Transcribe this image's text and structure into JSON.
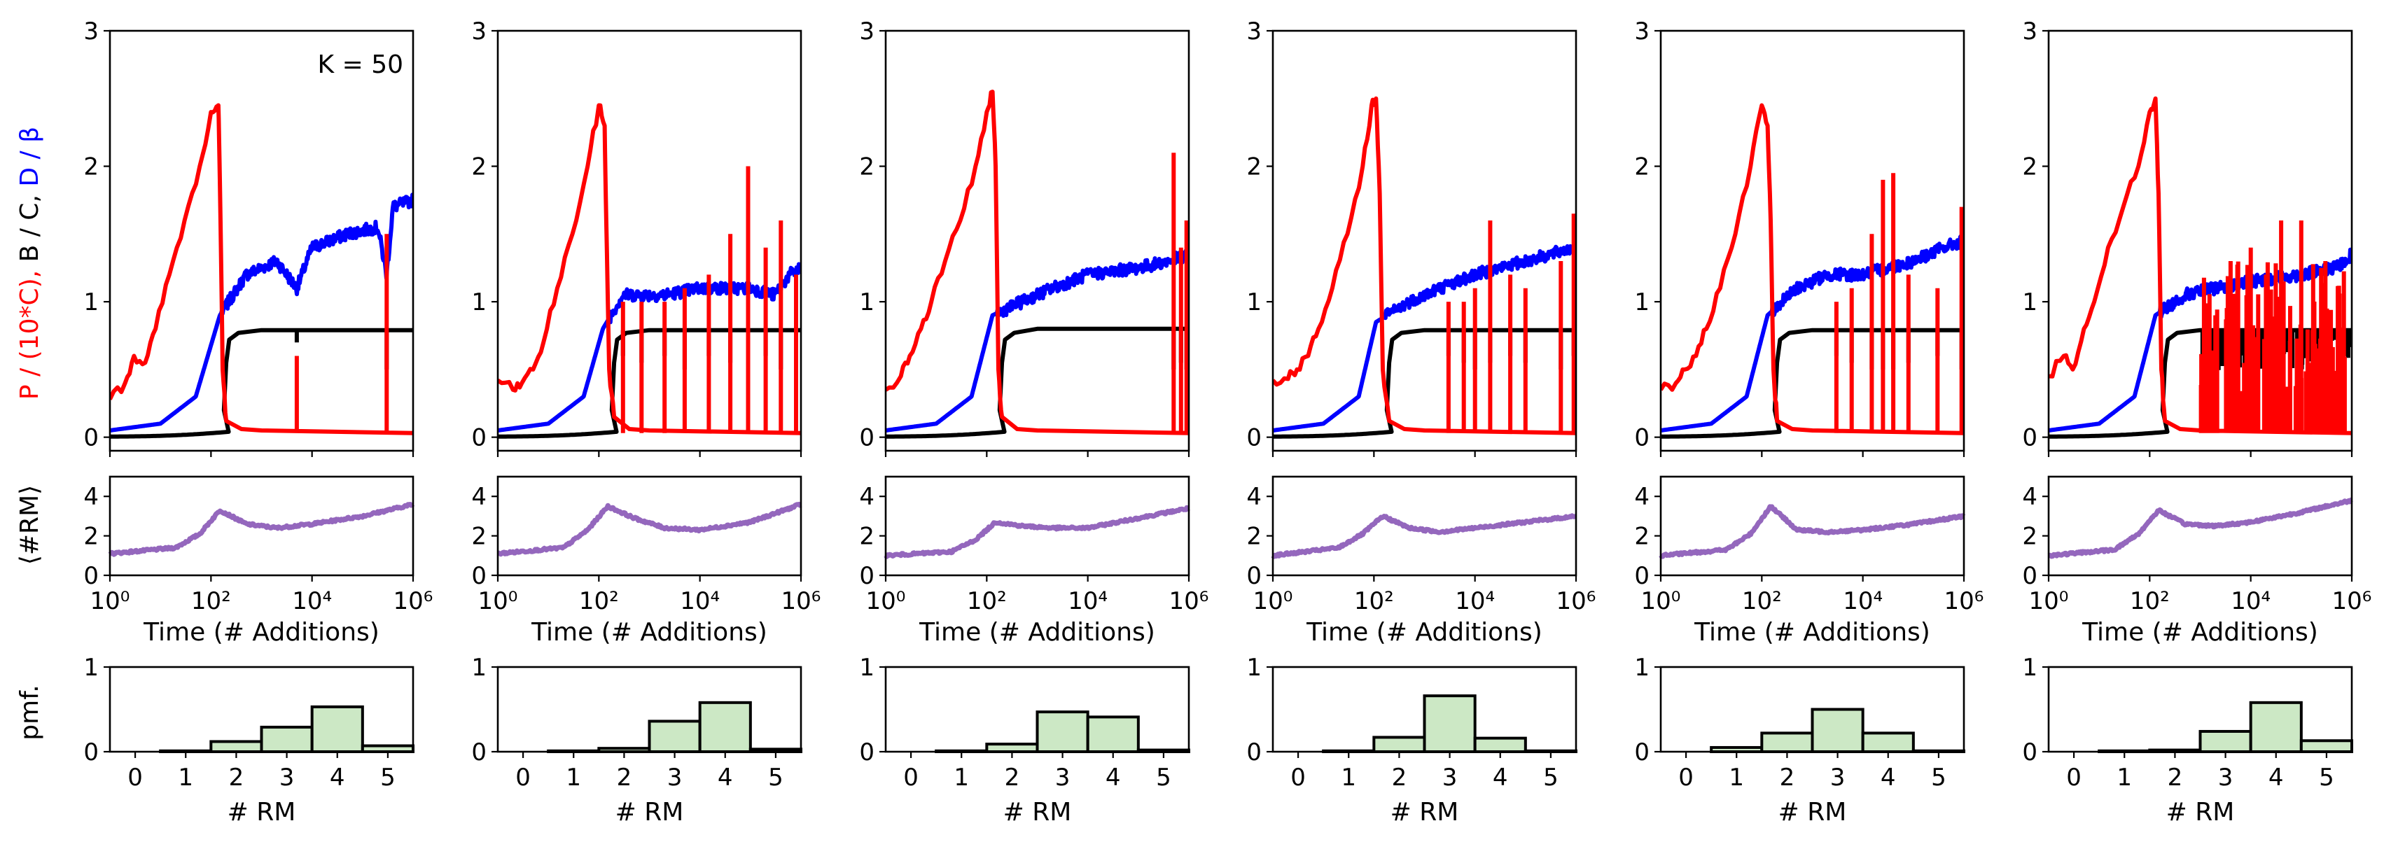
{
  "figure": {
    "annotation": "K = 50",
    "top_ylabel_parts": [
      {
        "text": "P / (10*C), ",
        "color": "#ff0000"
      },
      {
        "text": "B / C, ",
        "color": "#000000"
      },
      {
        "text": "D / β",
        "color": "#0000ff"
      }
    ],
    "mid_ylabel": "⟨#RM⟩",
    "bottom_ylabel": "pmf.",
    "xlabel_time": "Time (# Additions)",
    "xlabel_rm": "# RM"
  },
  "colors": {
    "P": "#ff0000",
    "B": "#000000",
    "D": "#0000ff",
    "RM": "#9467bd",
    "bar_fill": "#cce8c5",
    "bar_edge": "#000000"
  },
  "chart_data": {
    "type": "line",
    "top": {
      "xscale": "log",
      "xlim": [
        1,
        1000000
      ],
      "ylim": [
        -0.1,
        3
      ],
      "yticks": [
        0,
        1,
        2,
        3
      ],
      "series_keys": [
        "P / (10*C)",
        "B / C",
        "D / β"
      ]
    },
    "middle": {
      "xscale": "log",
      "xlim": [
        1,
        1000000
      ],
      "ylim": [
        0,
        5
      ],
      "yticks": [
        0,
        2,
        4
      ],
      "xticks": [
        "10^0",
        "10^2",
        "10^4",
        "10^6"
      ]
    },
    "bottom": {
      "type": "bar",
      "categories": [
        "0",
        "1",
        "2",
        "3",
        "4",
        "5"
      ],
      "ylim": [
        0,
        1
      ],
      "yticks": [
        0,
        1
      ]
    },
    "panels": [
      {
        "P": {
          "rise_x": [
            1,
            2,
            3,
            5,
            8,
            15,
            30,
            60,
            100,
            140,
            150,
            170,
            200
          ],
          "rise_y": [
            0.28,
            0.4,
            0.6,
            0.55,
            0.8,
            1.2,
            1.6,
            2.0,
            2.4,
            2.45,
            1.9,
            0.5,
            0.12
          ],
          "tail": 0.03,
          "spikes": [
            [
              5000,
              0.6
            ],
            [
              300000,
              1.5
            ]
          ],
          "dense": 0
        },
        "B": {
          "plateau": 0.79,
          "dips": [
            [
              5000,
              0.7
            ],
            [
              300000,
              0.5
            ]
          ],
          "dense": 0
        },
        "D": {
          "pts": [
            [
              1,
              0.05
            ],
            [
              10,
              0.1
            ],
            [
              50,
              0.3
            ],
            [
              150,
              0.9
            ],
            [
              500,
              1.2
            ],
            [
              2000,
              1.3
            ],
            [
              5000,
              1.1
            ],
            [
              10000,
              1.4
            ],
            [
              50000,
              1.5
            ],
            [
              200000,
              1.55
            ],
            [
              300000,
              1.2
            ],
            [
              400000,
              1.7
            ],
            [
              1000000,
              1.75
            ]
          ]
        },
        "RM": [
          [
            1,
            1.1
          ],
          [
            20,
            1.4
          ],
          [
            60,
            2.1
          ],
          [
            150,
            3.3
          ],
          [
            500,
            2.6
          ],
          [
            2000,
            2.4
          ],
          [
            10000,
            2.6
          ],
          [
            100000,
            3.0
          ],
          [
            1000000,
            3.6
          ]
        ],
        "pmf": [
          0.0,
          0.01,
          0.12,
          0.29,
          0.53,
          0.07
        ]
      },
      {
        "P": {
          "rise_x": [
            1,
            2,
            3,
            5,
            8,
            15,
            30,
            60,
            100,
            130,
            140,
            160,
            200
          ],
          "rise_y": [
            0.42,
            0.35,
            0.4,
            0.5,
            0.7,
            1.1,
            1.5,
            2.0,
            2.45,
            2.3,
            1.6,
            0.5,
            0.15
          ],
          "tail": 0.03,
          "spikes": [
            [
              300,
              1.0
            ],
            [
              700,
              1.0
            ],
            [
              2000,
              1.0
            ],
            [
              5000,
              1.1
            ],
            [
              15000,
              1.2
            ],
            [
              40000,
              1.5
            ],
            [
              90000,
              2.0
            ],
            [
              200000,
              1.4
            ],
            [
              400000,
              1.6
            ],
            [
              800000,
              1.2
            ]
          ],
          "dense": 0
        },
        "B": {
          "plateau": 0.79,
          "dips": [
            [
              300,
              0.6
            ],
            [
              700,
              0.55
            ],
            [
              2000,
              0.6
            ],
            [
              5000,
              0.5
            ],
            [
              15000,
              0.6
            ],
            [
              40000,
              0.55
            ],
            [
              90000,
              0.5
            ],
            [
              200000,
              0.6
            ],
            [
              400000,
              0.5
            ],
            [
              800000,
              0.55
            ]
          ],
          "dense": 0
        },
        "D": {
          "pts": [
            [
              1,
              0.05
            ],
            [
              10,
              0.1
            ],
            [
              50,
              0.3
            ],
            [
              120,
              0.8
            ],
            [
              300,
              1.05
            ],
            [
              2000,
              1.05
            ],
            [
              10000,
              1.1
            ],
            [
              100000,
              1.1
            ],
            [
              300000,
              1.05
            ],
            [
              600000,
              1.2
            ],
            [
              1000000,
              1.25
            ]
          ]
        },
        "RM": [
          [
            1,
            1.1
          ],
          [
            20,
            1.4
          ],
          [
            60,
            2.3
          ],
          [
            150,
            3.5
          ],
          [
            500,
            2.9
          ],
          [
            2000,
            2.4
          ],
          [
            10000,
            2.3
          ],
          [
            100000,
            2.7
          ],
          [
            1000000,
            3.6
          ]
        ],
        "pmf": [
          0.0,
          0.01,
          0.04,
          0.36,
          0.58,
          0.03
        ]
      },
      {
        "P": {
          "rise_x": [
            1,
            2,
            3,
            5,
            8,
            15,
            30,
            60,
            100,
            130,
            150,
            170,
            200
          ],
          "rise_y": [
            0.35,
            0.45,
            0.6,
            0.8,
            1.0,
            1.3,
            1.6,
            2.0,
            2.4,
            2.55,
            2.0,
            0.5,
            0.15
          ],
          "tail": 0.03,
          "spikes": [
            [
              500000,
              2.1
            ],
            [
              700000,
              1.4
            ],
            [
              900000,
              1.6
            ]
          ],
          "dense": 0
        },
        "B": {
          "plateau": 0.8,
          "dips": [
            [
              500000,
              0.5
            ],
            [
              700000,
              0.55
            ],
            [
              900000,
              0.5
            ]
          ],
          "dense": 0
        },
        "D": {
          "pts": [
            [
              1,
              0.05
            ],
            [
              10,
              0.1
            ],
            [
              50,
              0.3
            ],
            [
              130,
              0.9
            ],
            [
              500,
              1.0
            ],
            [
              2000,
              1.1
            ],
            [
              10000,
              1.2
            ],
            [
              100000,
              1.25
            ],
            [
              400000,
              1.3
            ],
            [
              1000000,
              1.35
            ]
          ]
        },
        "RM": [
          [
            1,
            1.0
          ],
          [
            20,
            1.2
          ],
          [
            60,
            1.8
          ],
          [
            150,
            2.7
          ],
          [
            500,
            2.5
          ],
          [
            2000,
            2.4
          ],
          [
            10000,
            2.4
          ],
          [
            100000,
            2.9
          ],
          [
            1000000,
            3.4
          ]
        ],
        "pmf": [
          0.0,
          0.01,
          0.09,
          0.47,
          0.41,
          0.02
        ]
      },
      {
        "P": {
          "rise_x": [
            1,
            2,
            3,
            5,
            8,
            15,
            30,
            60,
            90,
            110,
            130,
            150,
            200
          ],
          "rise_y": [
            0.42,
            0.43,
            0.5,
            0.6,
            0.8,
            1.1,
            1.5,
            2.0,
            2.45,
            2.5,
            1.8,
            0.5,
            0.12
          ],
          "tail": 0.03,
          "spikes": [
            [
              3000,
              1.0
            ],
            [
              6000,
              1.0
            ],
            [
              10000,
              1.1
            ],
            [
              20000,
              1.6
            ],
            [
              50000,
              1.2
            ],
            [
              100000,
              1.1
            ],
            [
              500000,
              1.3
            ],
            [
              900000,
              1.65
            ]
          ],
          "dense": 0
        },
        "B": {
          "plateau": 0.79,
          "dips": [
            [
              3000,
              0.6
            ],
            [
              6000,
              0.55
            ],
            [
              10000,
              0.5
            ],
            [
              20000,
              0.55
            ],
            [
              50000,
              0.6
            ],
            [
              100000,
              0.55
            ],
            [
              500000,
              0.5
            ],
            [
              900000,
              0.6
            ]
          ],
          "dense": 0
        },
        "D": {
          "pts": [
            [
              1,
              0.05
            ],
            [
              10,
              0.1
            ],
            [
              50,
              0.3
            ],
            [
              110,
              0.85
            ],
            [
              500,
              1.0
            ],
            [
              2000,
              1.1
            ],
            [
              10000,
              1.2
            ],
            [
              100000,
              1.3
            ],
            [
              1000000,
              1.4
            ]
          ]
        },
        "RM": [
          [
            1,
            1.0
          ],
          [
            20,
            1.4
          ],
          [
            60,
            2.1
          ],
          [
            150,
            3.0
          ],
          [
            500,
            2.4
          ],
          [
            2000,
            2.2
          ],
          [
            10000,
            2.4
          ],
          [
            100000,
            2.7
          ],
          [
            1000000,
            3.0
          ]
        ],
        "pmf": [
          0.0,
          0.01,
          0.17,
          0.66,
          0.16,
          0.01
        ]
      },
      {
        "P": {
          "rise_x": [
            1,
            2,
            3,
            5,
            8,
            15,
            30,
            60,
            100,
            130,
            150,
            170,
            200
          ],
          "rise_y": [
            0.35,
            0.4,
            0.5,
            0.6,
            0.8,
            1.1,
            1.5,
            2.0,
            2.45,
            2.3,
            1.6,
            0.5,
            0.12
          ],
          "tail": 0.03,
          "spikes": [
            [
              3000,
              1.0
            ],
            [
              6000,
              1.1
            ],
            [
              15000,
              1.5
            ],
            [
              25000,
              1.9
            ],
            [
              40000,
              1.95
            ],
            [
              80000,
              1.2
            ],
            [
              300000,
              1.1
            ],
            [
              900000,
              1.7
            ]
          ],
          "dense": 0
        },
        "B": {
          "plateau": 0.79,
          "dips": [
            [
              3000,
              0.6
            ],
            [
              6000,
              0.55
            ],
            [
              15000,
              0.5
            ],
            [
              25000,
              0.5
            ],
            [
              40000,
              0.5
            ],
            [
              80000,
              0.55
            ],
            [
              300000,
              0.6
            ],
            [
              900000,
              0.5
            ]
          ],
          "dense": 0
        },
        "D": {
          "pts": [
            [
              1,
              0.05
            ],
            [
              10,
              0.1
            ],
            [
              50,
              0.3
            ],
            [
              130,
              0.9
            ],
            [
              500,
              1.1
            ],
            [
              2000,
              1.2
            ],
            [
              10000,
              1.2
            ],
            [
              100000,
              1.3
            ],
            [
              400000,
              1.4
            ],
            [
              1000000,
              1.45
            ]
          ]
        },
        "RM": [
          [
            1,
            1.0
          ],
          [
            20,
            1.3
          ],
          [
            60,
            2.1
          ],
          [
            150,
            3.5
          ],
          [
            500,
            2.3
          ],
          [
            2000,
            2.2
          ],
          [
            10000,
            2.3
          ],
          [
            100000,
            2.6
          ],
          [
            1000000,
            3.0
          ]
        ],
        "pmf": [
          0.0,
          0.05,
          0.22,
          0.5,
          0.22,
          0.01
        ]
      },
      {
        "P": {
          "rise_x": [
            1,
            2,
            3,
            5,
            8,
            15,
            30,
            60,
            100,
            130,
            150,
            170,
            200
          ],
          "rise_y": [
            0.45,
            0.6,
            0.5,
            0.8,
            1.0,
            1.4,
            1.7,
            2.0,
            2.4,
            2.5,
            1.8,
            0.5,
            0.12
          ],
          "tail": 0.03,
          "spikes": [
            [
              2000,
              0.9
            ],
            [
              4000,
              1.3
            ],
            [
              10000,
              1.4
            ],
            [
              20000,
              1.2
            ],
            [
              40000,
              1.6
            ],
            [
              100000,
              1.6
            ],
            [
              300000,
              1.3
            ]
          ],
          "dense": 1
        },
        "B": {
          "plateau": 0.79,
          "dips": [
            [
              2000,
              0.6
            ],
            [
              4000,
              0.55
            ],
            [
              10000,
              0.5
            ],
            [
              20000,
              0.6
            ],
            [
              40000,
              0.55
            ],
            [
              100000,
              0.5
            ],
            [
              300000,
              0.55
            ]
          ],
          "dense": 1
        },
        "D": {
          "pts": [
            [
              1,
              0.05
            ],
            [
              10,
              0.1
            ],
            [
              50,
              0.3
            ],
            [
              130,
              0.9
            ],
            [
              500,
              1.05
            ],
            [
              2000,
              1.1
            ],
            [
              10000,
              1.15
            ],
            [
              100000,
              1.2
            ],
            [
              500000,
              1.25
            ],
            [
              1000000,
              1.35
            ]
          ]
        },
        "RM": [
          [
            1,
            1.0
          ],
          [
            20,
            1.3
          ],
          [
            60,
            2.1
          ],
          [
            150,
            3.3
          ],
          [
            500,
            2.6
          ],
          [
            2000,
            2.5
          ],
          [
            10000,
            2.7
          ],
          [
            100000,
            3.2
          ],
          [
            1000000,
            3.8
          ]
        ],
        "pmf": [
          0.0,
          0.01,
          0.02,
          0.24,
          0.58,
          0.13
        ]
      }
    ]
  }
}
